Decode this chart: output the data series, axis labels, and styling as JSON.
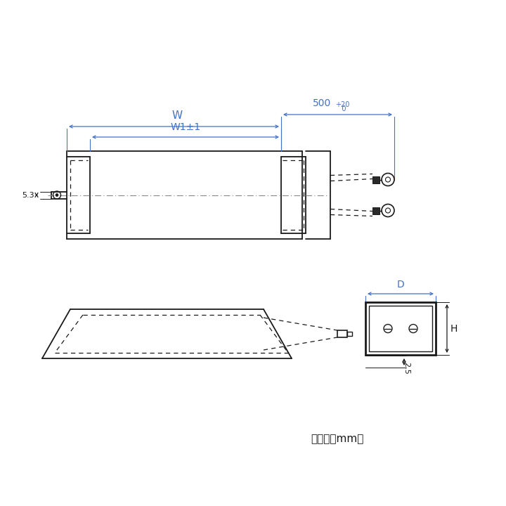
{
  "bg_color": "#ffffff",
  "line_color": "#1a1a1a",
  "dim_color": "#4472c4",
  "fig_width": 7.2,
  "fig_height": 7.2,
  "unit_text": "（単位：mm）",
  "dim_W": "W",
  "dim_W1": "W1±1",
  "dim_53": "5.3",
  "dim_D": "D",
  "dim_H": "H",
  "dim_25": "2.5"
}
